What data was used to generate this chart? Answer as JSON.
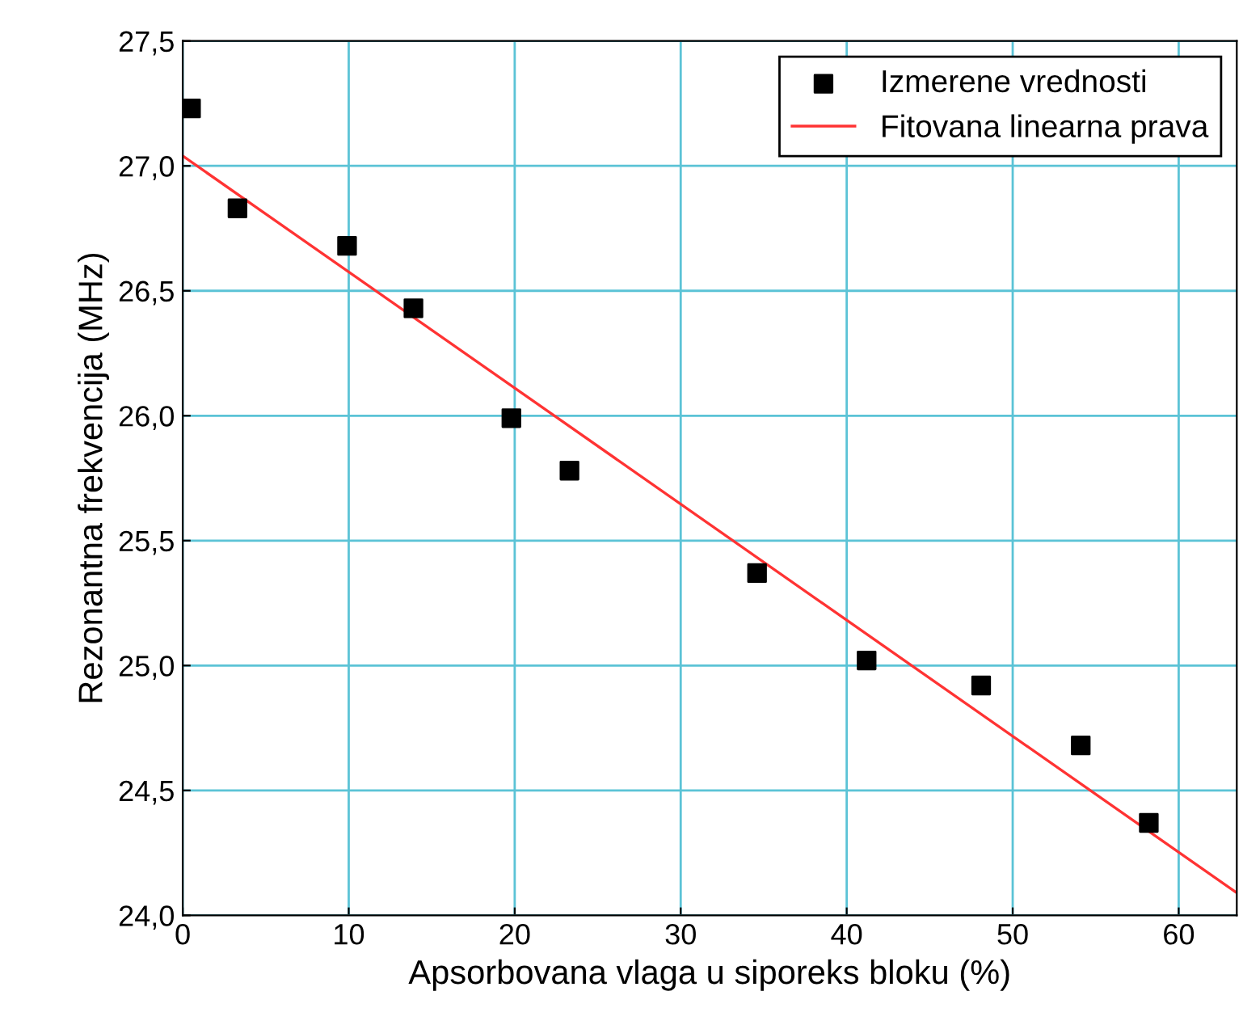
{
  "chart_data": {
    "type": "scatter",
    "xlabel": "Apsorbovana vlaga u siporeks bloku (%)",
    "ylabel": "Rezonantna frekvencija (MHz)",
    "xlim": [
      0,
      63.5
    ],
    "ylim": [
      24.0,
      27.5
    ],
    "xticks": [
      0,
      10,
      20,
      30,
      40,
      50,
      60
    ],
    "yticks": [
      {
        "value": 24.0,
        "label": "24,0"
      },
      {
        "value": 24.5,
        "label": "24,5"
      },
      {
        "value": 25.0,
        "label": "25,0"
      },
      {
        "value": 25.5,
        "label": "25,5"
      },
      {
        "value": 26.0,
        "label": "26,0"
      },
      {
        "value": 26.5,
        "label": "26,5"
      },
      {
        "value": 27.0,
        "label": "27,0"
      },
      {
        "value": 27.5,
        "label": "27,5"
      }
    ],
    "grid": true,
    "legend": "top right",
    "series": [
      {
        "name": "Izmerene vrednosti",
        "marker": "square",
        "color": "#000000",
        "x": [
          0.5,
          3.3,
          9.9,
          13.9,
          19.8,
          23.3,
          34.6,
          41.2,
          48.1,
          54.1,
          58.2
        ],
        "values": [
          27.23,
          26.83,
          26.68,
          26.43,
          25.99,
          25.78,
          25.37,
          25.02,
          24.92,
          24.68,
          24.37
        ]
      },
      {
        "name": "Fitovana linearna prava",
        "type": "line",
        "color": "#ff3333",
        "x": [
          0,
          63.5
        ],
        "values": [
          27.04,
          24.09
        ]
      }
    ]
  }
}
